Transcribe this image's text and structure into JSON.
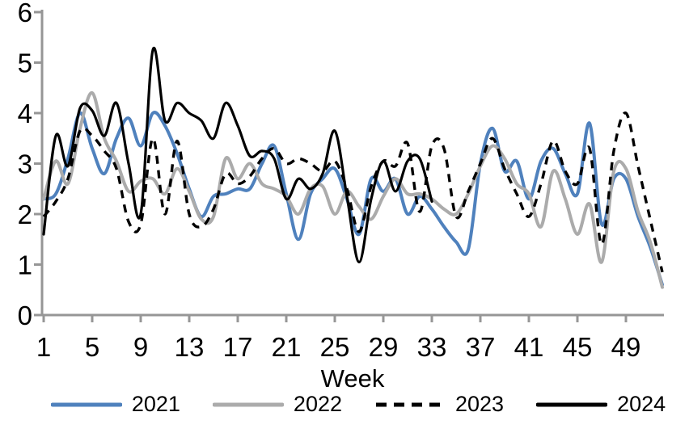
{
  "chart_data": {
    "type": "line",
    "title": "",
    "xlabel": "Week",
    "ylabel": "",
    "x_unit": "week",
    "x_range": [
      1,
      52
    ],
    "x_ticks": [
      1,
      5,
      9,
      13,
      17,
      21,
      25,
      29,
      33,
      37,
      41,
      45,
      49
    ],
    "ylim": [
      0,
      6
    ],
    "y_ticks": [
      0,
      1,
      2,
      3,
      4,
      5,
      6
    ],
    "grid": false,
    "legend_position": "bottom",
    "axis_color": "#969696",
    "smooth_lines": true,
    "series": [
      {
        "name": "2021",
        "color": "#4F81BD",
        "dash": "solid",
        "start_week": 1,
        "values": [
          2.3,
          2.4,
          3.1,
          4.0,
          3.3,
          2.8,
          3.5,
          3.9,
          3.35,
          4.0,
          3.75,
          3.2,
          2.5,
          1.95,
          2.35,
          2.4,
          2.5,
          2.5,
          3.0,
          3.35,
          2.4,
          1.5,
          2.4,
          2.7,
          2.9,
          2.3,
          1.6,
          2.7,
          2.45,
          2.7,
          2.0,
          2.35,
          2.1,
          1.75,
          1.45,
          1.3,
          3.0,
          3.7,
          2.85,
          3.05,
          2.3,
          3.05,
          3.3,
          2.8,
          2.4,
          3.8,
          1.8,
          2.7,
          2.7,
          1.95,
          1.35,
          0.6
        ]
      },
      {
        "name": "2022",
        "color": "#ABABAB",
        "dash": "solid",
        "start_week": 1,
        "values": [
          2.3,
          3.05,
          2.6,
          3.7,
          4.4,
          3.5,
          3.05,
          2.45,
          2.65,
          2.7,
          2.4,
          2.9,
          2.45,
          1.9,
          1.95,
          3.1,
          2.7,
          3.0,
          2.6,
          2.5,
          2.35,
          2.0,
          2.5,
          2.55,
          2.0,
          2.45,
          2.15,
          1.9,
          2.35,
          2.7,
          2.4,
          2.4,
          2.3,
          2.1,
          2.0,
          2.4,
          2.95,
          3.35,
          3.1,
          2.6,
          2.4,
          1.75,
          2.85,
          2.3,
          1.6,
          2.2,
          1.05,
          2.85,
          2.9,
          2.05,
          1.45,
          0.55
        ]
      },
      {
        "name": "2023",
        "color": "#000000",
        "dash": "dashed",
        "start_week": 1,
        "values": [
          1.95,
          2.25,
          2.7,
          3.65,
          3.55,
          3.25,
          2.9,
          1.85,
          1.8,
          3.5,
          2.0,
          3.45,
          2.0,
          1.75,
          2.1,
          2.8,
          2.6,
          2.75,
          3.1,
          3.3,
          3.0,
          3.1,
          3.0,
          2.85,
          3.05,
          2.5,
          1.65,
          2.55,
          3.05,
          2.95,
          3.4,
          2.05,
          3.35,
          3.3,
          1.95,
          2.45,
          3.0,
          3.5,
          2.9,
          2.4,
          1.95,
          2.6,
          3.45,
          2.85,
          2.6,
          3.3,
          1.4,
          3.25,
          4.0,
          2.95,
          1.9,
          0.85
        ]
      },
      {
        "name": "2024",
        "color": "#000000",
        "dash": "solid",
        "start_week": 1,
        "values": [
          1.6,
          3.55,
          2.95,
          4.1,
          4.05,
          3.55,
          4.2,
          3.0,
          2.0,
          5.25,
          3.85,
          4.2,
          4.0,
          3.85,
          3.5,
          4.2,
          3.75,
          3.15,
          3.25,
          3.1,
          2.3,
          2.7,
          2.5,
          2.8,
          3.65,
          2.35,
          1.05,
          2.3,
          3.05,
          2.45,
          3.05,
          3.1,
          2.25
        ]
      }
    ]
  }
}
